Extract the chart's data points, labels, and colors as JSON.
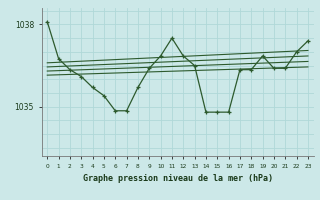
{
  "xlabel": "Graphe pression niveau de la mer (hPa)",
  "bg_color": "#cce8e8",
  "grid_color": "#b0d8d8",
  "line_color": "#2d5a2d",
  "text_color": "#1a3a1a",
  "xlim": [
    -0.5,
    23.5
  ],
  "ylim": [
    1033.2,
    1038.6
  ],
  "yticks": [
    1035,
    1038
  ],
  "xticks": [
    0,
    1,
    2,
    3,
    4,
    5,
    6,
    7,
    8,
    9,
    10,
    11,
    12,
    13,
    14,
    15,
    16,
    17,
    18,
    19,
    20,
    21,
    22,
    23
  ],
  "main_x": [
    0,
    1,
    2,
    3,
    4,
    5,
    6,
    7,
    8,
    9,
    10,
    11,
    12,
    13,
    14,
    15,
    16,
    17,
    18,
    19,
    20,
    21,
    22,
    23
  ],
  "main_y": [
    1038.1,
    1036.75,
    1036.35,
    1036.1,
    1035.7,
    1035.4,
    1034.85,
    1034.85,
    1035.7,
    1036.4,
    1036.85,
    1037.5,
    1036.85,
    1036.5,
    1034.8,
    1034.8,
    1034.8,
    1036.35,
    1036.35,
    1036.85,
    1036.4,
    1036.4,
    1037.0,
    1037.4
  ],
  "trend1_x": [
    0,
    23
  ],
  "trend1_y": [
    1036.6,
    1037.05
  ],
  "trend2_x": [
    0,
    23
  ],
  "trend2_y": [
    1036.45,
    1036.85
  ],
  "trend3_x": [
    0,
    23
  ],
  "trend3_y": [
    1036.3,
    1036.65
  ],
  "trend4_x": [
    0,
    23
  ],
  "trend4_y": [
    1036.15,
    1036.45
  ]
}
